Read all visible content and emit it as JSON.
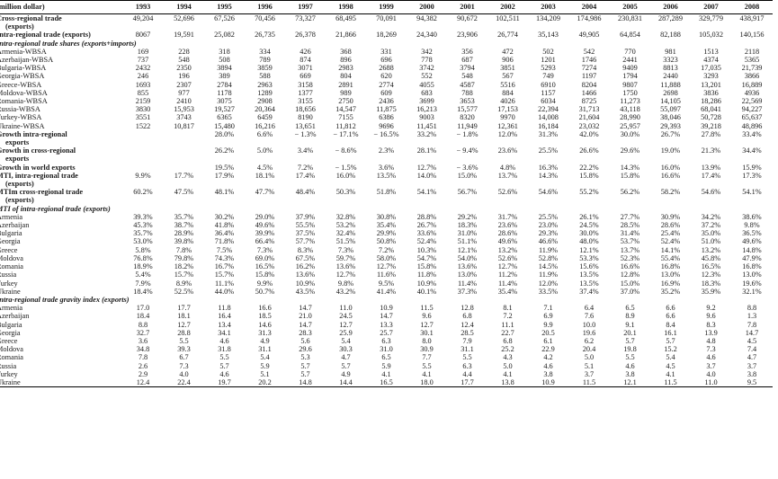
{
  "header": {
    "label": "(million dollar)",
    "years": [
      "1993",
      "1994",
      "1995",
      "1996",
      "1997",
      "1998",
      "1999",
      "2000",
      "2001",
      "2002",
      "2003",
      "2004",
      "2005",
      "2006",
      "2007",
      "2008"
    ]
  },
  "rows": [
    {
      "type": "bold",
      "label": "Cross-regional trade",
      "values": [
        "49,204",
        "52,696",
        "67,526",
        "70,456",
        "73,327",
        "68,495",
        "70,091",
        "94,382",
        "90,672",
        "102,511",
        "134,209",
        "174,986",
        "230,831",
        "287,289",
        "329,779",
        "438,917"
      ]
    },
    {
      "type": "cont",
      "label": "(exports)",
      "values": []
    },
    {
      "type": "bold",
      "label": "Intra-regional trade (exports)",
      "values": [
        "8067",
        "19,591",
        "25,082",
        "26,735",
        "26,378",
        "21,866",
        "18,269",
        "24,340",
        "23,906",
        "26,774",
        "35,143",
        "49,905",
        "64,854",
        "82,188",
        "105,032",
        "140,156"
      ]
    },
    {
      "type": "sec",
      "label": "Intra-regional trade shares (exports+imports)",
      "values": []
    },
    {
      "type": "row",
      "label": "Armenia-WBSA",
      "values": [
        "169",
        "228",
        "318",
        "334",
        "426",
        "368",
        "331",
        "342",
        "356",
        "472",
        "502",
        "542",
        "770",
        "981",
        "1513",
        "2118"
      ]
    },
    {
      "type": "row",
      "label": "Azerbaijan-WBSA",
      "values": [
        "737",
        "548",
        "508",
        "789",
        "874",
        "896",
        "696",
        "778",
        "687",
        "906",
        "1201",
        "1746",
        "2441",
        "3323",
        "4374",
        "5365"
      ]
    },
    {
      "type": "row",
      "label": "Bulgaria-WBSA",
      "values": [
        "2432",
        "2350",
        "3894",
        "3859",
        "3071",
        "2983",
        "2688",
        "3742",
        "3794",
        "3851",
        "5293",
        "7274",
        "9409",
        "8813",
        "17,035",
        "21,739"
      ]
    },
    {
      "type": "row",
      "label": "Georgia-WBSA",
      "values": [
        "246",
        "196",
        "389",
        "588",
        "669",
        "804",
        "620",
        "552",
        "548",
        "567",
        "749",
        "1197",
        "1794",
        "2440",
        "3293",
        "3866"
      ]
    },
    {
      "type": "row",
      "label": "Greece-WBSA",
      "values": [
        "1693",
        "2307",
        "2784",
        "2963",
        "3158",
        "2891",
        "2774",
        "4055",
        "4587",
        "5516",
        "6910",
        "8204",
        "9807",
        "11,888",
        "13,201",
        "16,889"
      ]
    },
    {
      "type": "row",
      "label": "Moldova-WBSA",
      "values": [
        "855",
        "977",
        "1178",
        "1289",
        "1377",
        "989",
        "609",
        "683",
        "788",
        "884",
        "1157",
        "1466",
        "1750",
        "2698",
        "3836",
        "4936"
      ]
    },
    {
      "type": "row",
      "label": "Romania-WBSA",
      "values": [
        "2159",
        "2410",
        "3075",
        "2908",
        "3155",
        "2750",
        "2436",
        "3699",
        "3653",
        "4026",
        "6034",
        "8725",
        "11,273",
        "14,105",
        "18,286",
        "22,569"
      ]
    },
    {
      "type": "row",
      "label": "Russia-WBSA",
      "values": [
        "3830",
        "15,953",
        "19,527",
        "20,364",
        "18,656",
        "14,547",
        "11,875",
        "16,213",
        "15,577",
        "17,153",
        "22,394",
        "31,713",
        "43,118",
        "55,097",
        "68,041",
        "94,227"
      ]
    },
    {
      "type": "row",
      "label": "Turkey-WBSA",
      "values": [
        "3551",
        "3743",
        "6365",
        "6459",
        "8190",
        "7155",
        "6386",
        "9003",
        "8320",
        "9970",
        "14,008",
        "21,604",
        "28,990",
        "38,046",
        "50,728",
        "65,637"
      ]
    },
    {
      "type": "row",
      "label": "Ukraine-WBSA",
      "values": [
        "1522",
        "10,817",
        "15,480",
        "16,216",
        "13,651",
        "11,812",
        "9696",
        "11,451",
        "11,949",
        "12,361",
        "16,184",
        "23,032",
        "25,957",
        "29,393",
        "39,218",
        "48,896"
      ]
    },
    {
      "type": "bold",
      "label": "Growth intra-regional",
      "values": [
        "",
        "",
        "28.0%",
        "6.6%",
        "− 1.3%",
        "− 17.1%",
        "− 16.5%",
        "33.2%",
        "− 1.8%",
        "12.0%",
        "31.3%",
        "42.0%",
        "30.0%",
        "26.7%",
        "27.8%",
        "33.4%"
      ]
    },
    {
      "type": "cont",
      "label": "exports",
      "values": []
    },
    {
      "type": "bold",
      "label": "Growth in cross-regional",
      "values": [
        "",
        "",
        "26.2%",
        "5.0%",
        "3.4%",
        "− 8.6%",
        "2.3%",
        "28.1%",
        "− 9.4%",
        "23.6%",
        "25.5%",
        "26.6%",
        "29.6%",
        "19.0%",
        "21.3%",
        "34.4%"
      ]
    },
    {
      "type": "cont",
      "label": "exports",
      "values": []
    },
    {
      "type": "bold",
      "label": "Growth in world exports",
      "values": [
        "",
        "",
        "19.5%",
        "4.5%",
        "7.2%",
        "− 1.5%",
        "3.6%",
        "12.7%",
        "− 3.6%",
        "4.8%",
        "16.3%",
        "22.2%",
        "14.3%",
        "16.0%",
        "13.9%",
        "15.9%"
      ]
    },
    {
      "type": "bold",
      "label": "MTI, intra-regional trade",
      "values": [
        "9.9%",
        "17.7%",
        "17.9%",
        "18.1%",
        "17.4%",
        "16.0%",
        "13.5%",
        "14.0%",
        "15.0%",
        "13.7%",
        "14.3%",
        "15.8%",
        "15.8%",
        "16.6%",
        "17.4%",
        "17.3%"
      ]
    },
    {
      "type": "cont",
      "label": "(exports)",
      "values": []
    },
    {
      "type": "bold",
      "label": "MTIm cross-regional trade",
      "values": [
        "60.2%",
        "47.5%",
        "48.1%",
        "47.7%",
        "48.4%",
        "50.3%",
        "51.8%",
        "54.1%",
        "56.7%",
        "52.6%",
        "54.6%",
        "55.2%",
        "56.2%",
        "58.2%",
        "54.6%",
        "54.1%"
      ]
    },
    {
      "type": "cont",
      "label": "(exports)",
      "values": []
    },
    {
      "type": "sec",
      "label": "MTI of intra-regional trade (exports)",
      "values": []
    },
    {
      "type": "row",
      "label": "Armenia",
      "values": [
        "39.3%",
        "35.7%",
        "30.2%",
        "29.0%",
        "37.9%",
        "32.8%",
        "30.8%",
        "28.8%",
        "29.2%",
        "31.7%",
        "25.5%",
        "26.1%",
        "27.7%",
        "30.9%",
        "34.2%",
        "38.6%"
      ]
    },
    {
      "type": "row",
      "label": "Azerbaijan",
      "values": [
        "45.3%",
        "38.7%",
        "41.8%",
        "49.6%",
        "55.5%",
        "53.2%",
        "35.4%",
        "26.7%",
        "18.3%",
        "23.6%",
        "23.0%",
        "24.5%",
        "28.5%",
        "28.6%",
        "37.2%",
        "9.8%"
      ]
    },
    {
      "type": "row",
      "label": "Bulgaria",
      "values": [
        "35.7%",
        "28.9%",
        "36.4%",
        "39.9%",
        "37.5%",
        "32.4%",
        "29.9%",
        "33.6%",
        "31.0%",
        "28.6%",
        "29.3%",
        "30.0%",
        "31.4%",
        "25.4%",
        "35.0%",
        "36.5%"
      ]
    },
    {
      "type": "row",
      "label": "Georgia",
      "values": [
        "53.0%",
        "39.8%",
        "71.8%",
        "66.4%",
        "57.7%",
        "51.5%",
        "50.8%",
        "52.4%",
        "51.1%",
        "49.6%",
        "46.6%",
        "48.0%",
        "53.7%",
        "52.4%",
        "51.0%",
        "49.6%"
      ]
    },
    {
      "type": "row",
      "label": "Greece",
      "values": [
        "5.8%",
        "7.8%",
        "7.5%",
        "7.3%",
        "8.3%",
        "7.3%",
        "7.2%",
        "10.3%",
        "12.1%",
        "13.2%",
        "11.9%",
        "12.1%",
        "13.7%",
        "14.1%",
        "13.2%",
        "14.8%"
      ]
    },
    {
      "type": "row",
      "label": "Moldova",
      "values": [
        "76.8%",
        "79.8%",
        "74.3%",
        "69.0%",
        "67.5%",
        "59.7%",
        "58.0%",
        "54.7%",
        "54.0%",
        "52.6%",
        "52.8%",
        "53.3%",
        "52.3%",
        "55.4%",
        "45.8%",
        "47.9%"
      ]
    },
    {
      "type": "row",
      "label": "Romania",
      "values": [
        "18.9%",
        "18.2%",
        "16.7%",
        "16.5%",
        "16.2%",
        "13.6%",
        "12.7%",
        "15.8%",
        "13.6%",
        "12.7%",
        "14.5%",
        "15.6%",
        "16.6%",
        "16.8%",
        "16.5%",
        "16.8%"
      ]
    },
    {
      "type": "row",
      "label": "Russia",
      "values": [
        "5.4%",
        "15.7%",
        "15.7%",
        "15.8%",
        "13.6%",
        "12.7%",
        "11.6%",
        "11.8%",
        "13.0%",
        "11.2%",
        "11.9%",
        "13.5%",
        "12.8%",
        "13.0%",
        "12.3%",
        "13.0%"
      ]
    },
    {
      "type": "row",
      "label": "Turkey",
      "values": [
        "7.9%",
        "8.9%",
        "11.1%",
        "9.9%",
        "10.9%",
        "9.8%",
        "9.5%",
        "10.9%",
        "11.4%",
        "11.4%",
        "12.0%",
        "13.5%",
        "15.0%",
        "16.9%",
        "18.3%",
        "19.6%"
      ]
    },
    {
      "type": "row",
      "label": "Ukraine",
      "values": [
        "18.4%",
        "52.5%",
        "44.0%",
        "50.7%",
        "43.5%",
        "43.2%",
        "41.4%",
        "40.1%",
        "37.3%",
        "35.4%",
        "33.5%",
        "37.4%",
        "37.0%",
        "35.2%",
        "35.9%",
        "32.1%"
      ]
    },
    {
      "type": "sec",
      "label": "Intra-regional trade gravity index (exports)",
      "values": []
    },
    {
      "type": "row",
      "label": "Armenia",
      "values": [
        "17.0",
        "17.7",
        "11.8",
        "16.6",
        "14.7",
        "11.0",
        "10.9",
        "11.5",
        "12.8",
        "8.1",
        "7.1",
        "6.4",
        "6.5",
        "6.6",
        "9.2",
        "8.8"
      ]
    },
    {
      "type": "row",
      "label": "Azerbaijan",
      "values": [
        "18.4",
        "18.1",
        "16.4",
        "18.5",
        "21.0",
        "24.5",
        "14.7",
        "9.6",
        "6.8",
        "7.2",
        "6.9",
        "7.6",
        "8.9",
        "6.6",
        "9.6",
        "1.3"
      ]
    },
    {
      "type": "row",
      "label": "Bulgaria",
      "values": [
        "8.8",
        "12.7",
        "13.4",
        "14.6",
        "14.7",
        "12.7",
        "13.3",
        "12.7",
        "12.4",
        "11.1",
        "9.9",
        "10.0",
        "9.1",
        "8.4",
        "8.3",
        "7.8"
      ]
    },
    {
      "type": "row",
      "label": "Georgia",
      "values": [
        "32.7",
        "28.8",
        "34.1",
        "31.3",
        "28.3",
        "25.9",
        "25.7",
        "30.1",
        "28.5",
        "22.7",
        "20.5",
        "19.6",
        "20.1",
        "16.1",
        "13.9",
        "14.7"
      ]
    },
    {
      "type": "row",
      "label": "Greece",
      "values": [
        "3.6",
        "5.5",
        "4.6",
        "4.9",
        "5.6",
        "5.4",
        "6.3",
        "8.0",
        "7.9",
        "6.8",
        "6.1",
        "6.2",
        "5.7",
        "5.7",
        "4.8",
        "4.5"
      ]
    },
    {
      "type": "row",
      "label": "Moldova",
      "values": [
        "34.8",
        "39.3",
        "31.8",
        "31.1",
        "29.6",
        "30.3",
        "31.0",
        "30.9",
        "31.1",
        "25.2",
        "22.9",
        "20.4",
        "19.8",
        "15.2",
        "7.3",
        "7.4"
      ]
    },
    {
      "type": "row",
      "label": "Romania",
      "values": [
        "7.8",
        "6.7",
        "5.5",
        "5.4",
        "5.3",
        "4.7",
        "6.5",
        "7.7",
        "5.5",
        "4.3",
        "4.2",
        "5.0",
        "5.5",
        "5.4",
        "4.6",
        "4.7"
      ]
    },
    {
      "type": "row",
      "label": "Russia",
      "values": [
        "2.6",
        "7.3",
        "5.7",
        "5.9",
        "5.7",
        "5.7",
        "5.9",
        "5.5",
        "6.3",
        "5.0",
        "4.6",
        "5.1",
        "4.6",
        "4.5",
        "3.7",
        "3.7"
      ]
    },
    {
      "type": "row",
      "label": "Turkey",
      "values": [
        "2.9",
        "4.0",
        "4.6",
        "5.1",
        "5.7",
        "4.9",
        "4.1",
        "4.1",
        "4.4",
        "4.1",
        "3.8",
        "3.7",
        "3.8",
        "4.1",
        "4.0",
        "3.8"
      ]
    },
    {
      "type": "row",
      "label": "Ukraine",
      "values": [
        "12.4",
        "22.4",
        "19.7",
        "20.2",
        "14.8",
        "14.4",
        "16.5",
        "18.0",
        "17.7",
        "13.8",
        "10.9",
        "11.5",
        "12.1",
        "11.5",
        "11.0",
        "9.5"
      ]
    }
  ]
}
